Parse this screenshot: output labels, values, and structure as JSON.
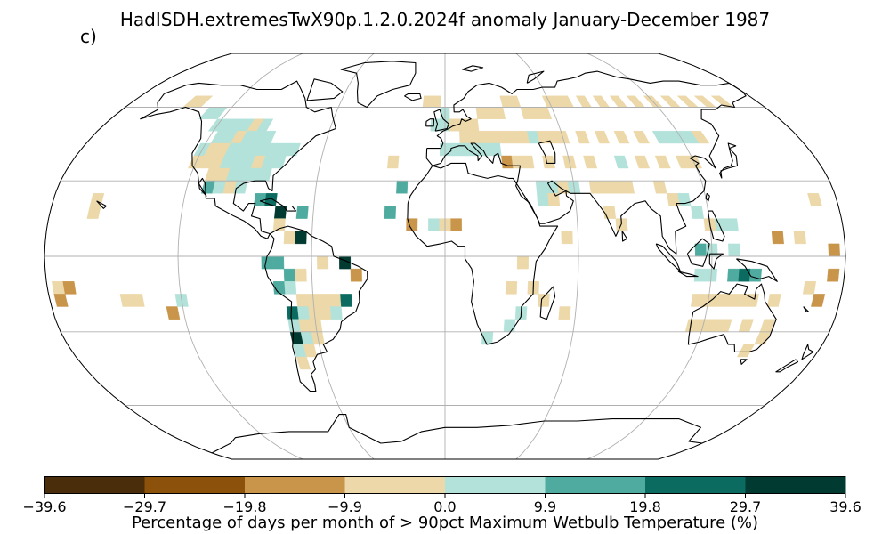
{
  "title": "HadISDH.extremesTwX90p.1.2.0.2024f anomaly January-December 1987",
  "panel_label": "c)",
  "colorbar": {
    "label": "Percentage of days per month of > 90pct Maximum Wetbulb Temperature (%)",
    "ticks": [
      "−39.6",
      "−29.7",
      "−19.8",
      "−9.9",
      "0.0",
      "9.9",
      "19.8",
      "29.7",
      "39.6"
    ],
    "tick_values": [
      -39.6,
      -29.7,
      -19.8,
      -9.9,
      0.0,
      9.9,
      19.8,
      29.7,
      39.6
    ],
    "colors": [
      "#543005",
      "#8c510a",
      "#bf812d",
      "#dfc27d",
      "#f6e8c3",
      "#c7eae5",
      "#80cdc1",
      "#35978f",
      "#01665e",
      "#003c30"
    ]
  },
  "map": {
    "projection": "Robinson",
    "gridlines": true,
    "lon_gridlines_deg": [
      -120,
      -60,
      0,
      60,
      120
    ],
    "lat_gridlines_deg": [
      -60,
      -30,
      0,
      30,
      60
    ],
    "coastline_color": "#000000",
    "grid_color": "#b0b0b0"
  },
  "chart_data": {
    "type": "heatmap",
    "title": "HadISDH.extremesTwX90p.1.2.0.2024f anomaly January-December 1987",
    "units": "%",
    "grid_resolution_deg": 5,
    "value_range": [
      -39.6,
      39.6
    ],
    "color_levels": [
      -39.6,
      -29.7,
      -19.8,
      -9.9,
      0.0,
      9.9,
      19.8,
      29.7,
      39.6
    ],
    "cells": [
      {
        "lon": -145,
        "lat": 62,
        "v": -5
      },
      {
        "lon": -140,
        "lat": 62,
        "v": -5
      },
      {
        "lon": -130,
        "lat": 57,
        "v": 5
      },
      {
        "lon": -125,
        "lat": 57,
        "v": 5
      },
      {
        "lon": -120,
        "lat": 52,
        "v": 5
      },
      {
        "lon": -115,
        "lat": 52,
        "v": 5
      },
      {
        "lon": -110,
        "lat": 52,
        "v": 5
      },
      {
        "lon": -105,
        "lat": 52,
        "v": 5
      },
      {
        "lon": -100,
        "lat": 52,
        "v": -5
      },
      {
        "lon": -95,
        "lat": 52,
        "v": 5
      },
      {
        "lon": -115,
        "lat": 47,
        "v": 5
      },
      {
        "lon": -110,
        "lat": 47,
        "v": 5
      },
      {
        "lon": -105,
        "lat": 47,
        "v": -5
      },
      {
        "lon": -100,
        "lat": 47,
        "v": 5
      },
      {
        "lon": -95,
        "lat": 47,
        "v": 5
      },
      {
        "lon": -90,
        "lat": 47,
        "v": 5
      },
      {
        "lon": -120,
        "lat": 42,
        "v": 5
      },
      {
        "lon": -115,
        "lat": 42,
        "v": -5
      },
      {
        "lon": -110,
        "lat": 42,
        "v": -5
      },
      {
        "lon": -105,
        "lat": 42,
        "v": 5
      },
      {
        "lon": -100,
        "lat": 42,
        "v": 5
      },
      {
        "lon": -95,
        "lat": 42,
        "v": 5
      },
      {
        "lon": -90,
        "lat": 42,
        "v": 5
      },
      {
        "lon": -85,
        "lat": 42,
        "v": 5
      },
      {
        "lon": -80,
        "lat": 42,
        "v": 5
      },
      {
        "lon": -75,
        "lat": 42,
        "v": 5
      },
      {
        "lon": -120,
        "lat": 37,
        "v": -5
      },
      {
        "lon": -115,
        "lat": 37,
        "v": -5
      },
      {
        "lon": -110,
        "lat": 37,
        "v": -5
      },
      {
        "lon": -105,
        "lat": 37,
        "v": 5
      },
      {
        "lon": -100,
        "lat": 37,
        "v": 5
      },
      {
        "lon": -95,
        "lat": 37,
        "v": 5
      },
      {
        "lon": -90,
        "lat": 37,
        "v": -5
      },
      {
        "lon": -85,
        "lat": 37,
        "v": 5
      },
      {
        "lon": -80,
        "lat": 37,
        "v": 5
      },
      {
        "lon": -110,
        "lat": 32,
        "v": -5
      },
      {
        "lon": -105,
        "lat": 32,
        "v": -5
      },
      {
        "lon": -100,
        "lat": 32,
        "v": 5
      },
      {
        "lon": -95,
        "lat": 32,
        "v": 5
      },
      {
        "lon": -90,
        "lat": 32,
        "v": 5
      },
      {
        "lon": -85,
        "lat": 32,
        "v": 5
      },
      {
        "lon": -110,
        "lat": 27,
        "v": 15
      },
      {
        "lon": -105,
        "lat": 27,
        "v": 5
      },
      {
        "lon": -100,
        "lat": 27,
        "v": -5
      },
      {
        "lon": -95,
        "lat": 27,
        "v": 5
      },
      {
        "lon": -85,
        "lat": 22,
        "v": 15
      },
      {
        "lon": -80,
        "lat": 22,
        "v": 25
      },
      {
        "lon": -75,
        "lat": 17,
        "v": 35
      },
      {
        "lon": -65,
        "lat": 17,
        "v": 15
      },
      {
        "lon": -75,
        "lat": 12,
        "v": -5
      },
      {
        "lon": -70,
        "lat": 7,
        "v": -5
      },
      {
        "lon": -65,
        "lat": 7,
        "v": 35
      },
      {
        "lon": -80,
        "lat": -3,
        "v": 15
      },
      {
        "lon": -75,
        "lat": -3,
        "v": 15
      },
      {
        "lon": -70,
        "lat": -8,
        "v": 15
      },
      {
        "lon": -65,
        "lat": -8,
        "v": -5
      },
      {
        "lon": -55,
        "lat": -3,
        "v": -5
      },
      {
        "lon": -45,
        "lat": -3,
        "v": 35
      },
      {
        "lon": -40,
        "lat": -8,
        "v": -15
      },
      {
        "lon": -75,
        "lat": -13,
        "v": 15
      },
      {
        "lon": -70,
        "lat": -13,
        "v": 5
      },
      {
        "lon": -65,
        "lat": -18,
        "v": -5
      },
      {
        "lon": -60,
        "lat": -18,
        "v": -5
      },
      {
        "lon": -55,
        "lat": -18,
        "v": -5
      },
      {
        "lon": -50,
        "lat": -18,
        "v": -5
      },
      {
        "lon": -45,
        "lat": -18,
        "v": 25
      },
      {
        "lon": -70,
        "lat": -23,
        "v": 25
      },
      {
        "lon": -65,
        "lat": -23,
        "v": 5
      },
      {
        "lon": -60,
        "lat": -23,
        "v": -5
      },
      {
        "lon": -55,
        "lat": -23,
        "v": -5
      },
      {
        "lon": -50,
        "lat": -23,
        "v": 5
      },
      {
        "lon": -70,
        "lat": -28,
        "v": 5
      },
      {
        "lon": -65,
        "lat": -28,
        "v": -5
      },
      {
        "lon": -60,
        "lat": -28,
        "v": -5
      },
      {
        "lon": -70,
        "lat": -33,
        "v": 35
      },
      {
        "lon": -65,
        "lat": -33,
        "v": 5
      },
      {
        "lon": -60,
        "lat": -33,
        "v": -5
      },
      {
        "lon": -70,
        "lat": -38,
        "v": 5
      },
      {
        "lon": -65,
        "lat": -38,
        "v": -5
      },
      {
        "lon": -70,
        "lat": -43,
        "v": -5
      },
      {
        "lon": -160,
        "lat": 22,
        "v": -5
      },
      {
        "lon": -160,
        "lat": 17,
        "v": -5
      },
      {
        "lon": -175,
        "lat": -13,
        "v": -5
      },
      {
        "lon": -170,
        "lat": -13,
        "v": -15
      },
      {
        "lon": -175,
        "lat": -18,
        "v": -15
      },
      {
        "lon": -145,
        "lat": -18,
        "v": -5
      },
      {
        "lon": -140,
        "lat": -18,
        "v": -5
      },
      {
        "lon": -120,
        "lat": -18,
        "v": 5
      },
      {
        "lon": -125,
        "lat": -23,
        "v": -15
      },
      {
        "lon": -25,
        "lat": 37,
        "v": -5
      },
      {
        "lon": -20,
        "lat": 27,
        "v": 15
      },
      {
        "lon": -25,
        "lat": 17,
        "v": 15
      },
      {
        "lon": -15,
        "lat": 12,
        "v": -15
      },
      {
        "lon": -5,
        "lat": 12,
        "v": 5
      },
      {
        "lon": 5,
        "lat": 12,
        "v": -15
      },
      {
        "lon": 0,
        "lat": 12,
        "v": -5
      },
      {
        "lon": -10,
        "lat": 62,
        "v": -5
      },
      {
        "lon": -5,
        "lat": 62,
        "v": -5
      },
      {
        "lon": 0,
        "lat": 57,
        "v": 5
      },
      {
        "lon": -5,
        "lat": 52,
        "v": 5
      },
      {
        "lon": 0,
        "lat": 52,
        "v": 5
      },
      {
        "lon": 5,
        "lat": 52,
        "v": -5
      },
      {
        "lon": 10,
        "lat": 52,
        "v": -5
      },
      {
        "lon": 15,
        "lat": 52,
        "v": -5
      },
      {
        "lon": 20,
        "lat": 57,
        "v": -5
      },
      {
        "lon": 25,
        "lat": 57,
        "v": -5
      },
      {
        "lon": 30,
        "lat": 57,
        "v": -5
      },
      {
        "lon": 35,
        "lat": 62,
        "v": -5
      },
      {
        "lon": 40,
        "lat": 62,
        "v": -5
      },
      {
        "lon": 45,
        "lat": 57,
        "v": -5
      },
      {
        "lon": 50,
        "lat": 57,
        "v": -5
      },
      {
        "lon": 55,
        "lat": 57,
        "v": -5
      },
      {
        "lon": 60,
        "lat": 62,
        "v": -5
      },
      {
        "lon": 65,
        "lat": 62,
        "v": -5
      },
      {
        "lon": 70,
        "lat": 62,
        "v": -5
      },
      {
        "lon": 80,
        "lat": 62,
        "v": -5
      },
      {
        "lon": 90,
        "lat": 62,
        "v": -5
      },
      {
        "lon": 100,
        "lat": 62,
        "v": -5
      },
      {
        "lon": 110,
        "lat": 62,
        "v": -5
      },
      {
        "lon": 120,
        "lat": 62,
        "v": -5
      },
      {
        "lon": 130,
        "lat": 62,
        "v": -5
      },
      {
        "lon": 140,
        "lat": 62,
        "v": -5
      },
      {
        "lon": 150,
        "lat": 62,
        "v": -5
      },
      {
        "lon": 160,
        "lat": 62,
        "v": -5
      },
      {
        "lon": 10,
        "lat": 47,
        "v": -5
      },
      {
        "lon": 15,
        "lat": 47,
        "v": -5
      },
      {
        "lon": 20,
        "lat": 47,
        "v": -5
      },
      {
        "lon": 25,
        "lat": 47,
        "v": -5
      },
      {
        "lon": 30,
        "lat": 47,
        "v": -5
      },
      {
        "lon": 35,
        "lat": 47,
        "v": -5
      },
      {
        "lon": 40,
        "lat": 47,
        "v": -5
      },
      {
        "lon": 45,
        "lat": 47,
        "v": 5
      },
      {
        "lon": 50,
        "lat": 47,
        "v": -5
      },
      {
        "lon": 55,
        "lat": 47,
        "v": -5
      },
      {
        "lon": 60,
        "lat": 47,
        "v": -5
      },
      {
        "lon": 70,
        "lat": 47,
        "v": -5
      },
      {
        "lon": 80,
        "lat": 47,
        "v": -5
      },
      {
        "lon": 90,
        "lat": 47,
        "v": -5
      },
      {
        "lon": 100,
        "lat": 47,
        "v": -5
      },
      {
        "lon": 110,
        "lat": 47,
        "v": 5
      },
      {
        "lon": 115,
        "lat": 47,
        "v": 5
      },
      {
        "lon": 120,
        "lat": 47,
        "v": 5
      },
      {
        "lon": 125,
        "lat": 47,
        "v": 5
      },
      {
        "lon": 130,
        "lat": 47,
        "v": -5
      },
      {
        "lon": 0,
        "lat": 42,
        "v": 5
      },
      {
        "lon": 5,
        "lat": 42,
        "v": 5
      },
      {
        "lon": 10,
        "lat": 42,
        "v": 5
      },
      {
        "lon": 15,
        "lat": 42,
        "v": 5
      },
      {
        "lon": 20,
        "lat": 42,
        "v": 5
      },
      {
        "lon": 25,
        "lat": 42,
        "v": 5
      },
      {
        "lon": 30,
        "lat": 37,
        "v": -15
      },
      {
        "lon": 35,
        "lat": 37,
        "v": -5
      },
      {
        "lon": 40,
        "lat": 37,
        "v": -5
      },
      {
        "lon": 50,
        "lat": 37,
        "v": -5
      },
      {
        "lon": 60,
        "lat": 37,
        "v": -5
      },
      {
        "lon": 70,
        "lat": 37,
        "v": -5
      },
      {
        "lon": 85,
        "lat": 37,
        "v": 5
      },
      {
        "lon": 95,
        "lat": 37,
        "v": -5
      },
      {
        "lon": 105,
        "lat": 37,
        "v": -5
      },
      {
        "lon": 115,
        "lat": 37,
        "v": -5
      },
      {
        "lon": 120,
        "lat": 37,
        "v": -5
      },
      {
        "lon": 45,
        "lat": 27,
        "v": 5
      },
      {
        "lon": 50,
        "lat": 27,
        "v": 5
      },
      {
        "lon": 55,
        "lat": 27,
        "v": -5
      },
      {
        "lon": 60,
        "lat": 27,
        "v": 5
      },
      {
        "lon": 45,
        "lat": 22,
        "v": 5
      },
      {
        "lon": 50,
        "lat": 22,
        "v": -5
      },
      {
        "lon": 70,
        "lat": 27,
        "v": -5
      },
      {
        "lon": 75,
        "lat": 27,
        "v": -5
      },
      {
        "lon": 80,
        "lat": 27,
        "v": -5
      },
      {
        "lon": 85,
        "lat": 27,
        "v": -5
      },
      {
        "lon": 75,
        "lat": 17,
        "v": -5
      },
      {
        "lon": 80,
        "lat": 12,
        "v": -5
      },
      {
        "lon": 100,
        "lat": 27,
        "v": -5
      },
      {
        "lon": 105,
        "lat": 22,
        "v": -5
      },
      {
        "lon": 110,
        "lat": 22,
        "v": 5
      },
      {
        "lon": 115,
        "lat": 17,
        "v": 5
      },
      {
        "lon": 120,
        "lat": 12,
        "v": -5
      },
      {
        "lon": 125,
        "lat": 12,
        "v": 5
      },
      {
        "lon": 130,
        "lat": 12,
        "v": 5
      },
      {
        "lon": 115,
        "lat": 2,
        "v": 15
      },
      {
        "lon": 120,
        "lat": 2,
        "v": 5
      },
      {
        "lon": 130,
        "lat": 2,
        "v": 5
      },
      {
        "lon": 150,
        "lat": 7,
        "v": -15
      },
      {
        "lon": 160,
        "lat": 7,
        "v": -5
      },
      {
        "lon": 115,
        "lat": -8,
        "v": 5
      },
      {
        "lon": 120,
        "lat": -8,
        "v": 5
      },
      {
        "lon": 130,
        "lat": -8,
        "v": 15
      },
      {
        "lon": 135,
        "lat": -8,
        "v": 25
      },
      {
        "lon": 140,
        "lat": -8,
        "v": 15
      },
      {
        "lon": 115,
        "lat": -18,
        "v": -5
      },
      {
        "lon": 120,
        "lat": -18,
        "v": -5
      },
      {
        "lon": 125,
        "lat": -18,
        "v": -5
      },
      {
        "lon": 130,
        "lat": -18,
        "v": -5
      },
      {
        "lon": 135,
        "lat": -18,
        "v": -5
      },
      {
        "lon": 140,
        "lat": -18,
        "v": -5
      },
      {
        "lon": 150,
        "lat": -18,
        "v": -5
      },
      {
        "lon": 115,
        "lat": -28,
        "v": -5
      },
      {
        "lon": 120,
        "lat": -28,
        "v": -5
      },
      {
        "lon": 125,
        "lat": -28,
        "v": -5
      },
      {
        "lon": 130,
        "lat": -28,
        "v": -5
      },
      {
        "lon": 140,
        "lat": -28,
        "v": -5
      },
      {
        "lon": 150,
        "lat": -28,
        "v": -5
      },
      {
        "lon": 145,
        "lat": -38,
        "v": -5
      },
      {
        "lon": 150,
        "lat": -33,
        "v": -5
      },
      {
        "lon": 165,
        "lat": -13,
        "v": -5
      },
      {
        "lon": 170,
        "lat": -18,
        "v": -15
      },
      {
        "lon": 175,
        "lat": -8,
        "v": -15
      },
      {
        "lon": 170,
        "lat": 22,
        "v": -5
      },
      {
        "lon": 175,
        "lat": 2,
        "v": -15
      },
      {
        "lon": 35,
        "lat": -3,
        "v": -5
      },
      {
        "lon": 30,
        "lat": -13,
        "v": -5
      },
      {
        "lon": 40,
        "lat": -13,
        "v": -5
      },
      {
        "lon": 35,
        "lat": -23,
        "v": 5
      },
      {
        "lon": 30,
        "lat": -28,
        "v": 5
      },
      {
        "lon": 20,
        "lat": -33,
        "v": 5
      },
      {
        "lon": 45,
        "lat": -18,
        "v": -5
      },
      {
        "lon": 55,
        "lat": -23,
        "v": -5
      },
      {
        "lon": 55,
        "lat": 7,
        "v": -5
      }
    ]
  }
}
